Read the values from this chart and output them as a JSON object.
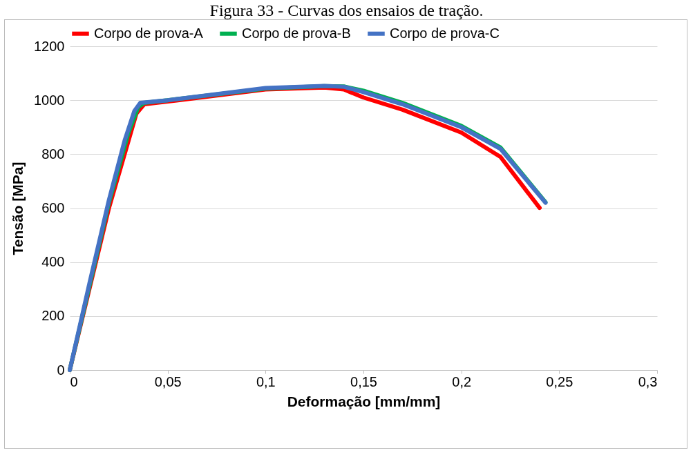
{
  "chart_data": {
    "type": "line",
    "title": "Figura 33 - Curvas dos ensaios de tração.",
    "xlabel": "Deformação [mm/mm]",
    "ylabel": "Tensão [MPa]",
    "xlim": [
      0,
      0.3
    ],
    "xticks": [
      0,
      {
        "value": 0.05,
        "label": "0,05"
      },
      {
        "value": 0.1,
        "label": "0,1"
      },
      {
        "value": 0.15,
        "label": "0,15"
      },
      {
        "value": 0.2,
        "label": "0,2"
      },
      {
        "value": 0.25,
        "label": "0,25"
      },
      {
        "value": 0.3,
        "label": "0,3"
      }
    ],
    "ylim": [
      0,
      1200
    ],
    "yticks": [
      0,
      200,
      400,
      600,
      800,
      1000,
      1200
    ],
    "grid": "y",
    "legend": "top",
    "marker": "none",
    "line_style": "solid",
    "series": [
      {
        "name": "Corpo de prova-A",
        "color": "#ff0000",
        "x": [
          0,
          0.01,
          0.02,
          0.028,
          0.034,
          0.038,
          0.05,
          0.1,
          0.13,
          0.14,
          0.15,
          0.17,
          0.2,
          0.22,
          0.24
        ],
        "values": [
          0,
          300,
          600,
          800,
          950,
          985,
          995,
          1040,
          1047,
          1040,
          1010,
          965,
          880,
          790,
          601
        ]
      },
      {
        "name": "Corpo de prova-B",
        "color": "#00b050",
        "x": [
          0,
          0.01,
          0.02,
          0.03,
          0.035,
          0.038,
          0.05,
          0.1,
          0.13,
          0.14,
          0.15,
          0.17,
          0.2,
          0.22,
          0.243
        ],
        "values": [
          0,
          310,
          620,
          880,
          975,
          990,
          1000,
          1043,
          1052,
          1051,
          1035,
          990,
          905,
          825,
          622
        ]
      },
      {
        "name": "Corpo de prova-C",
        "color": "#4472c4",
        "x": [
          0,
          0.01,
          0.02,
          0.028,
          0.033,
          0.036,
          0.05,
          0.1,
          0.13,
          0.14,
          0.15,
          0.17,
          0.2,
          0.22,
          0.243
        ],
        "values": [
          0,
          320,
          630,
          850,
          960,
          990,
          1000,
          1045,
          1053,
          1050,
          1030,
          985,
          900,
          820,
          620
        ]
      }
    ]
  }
}
